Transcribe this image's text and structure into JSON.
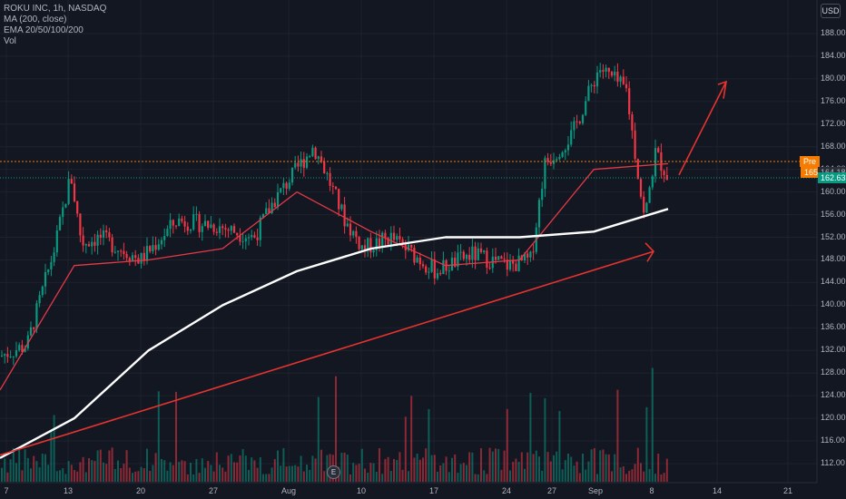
{
  "legend": {
    "symbol_line": "ROKU INC, 1h, NASDAQ",
    "ma_line": "MA (200, close)",
    "ema_line": "EMA 20/50/100/200",
    "vol_line": "Vol"
  },
  "currency": "USD",
  "pre_label": "Pre",
  "pre_price": "165.49",
  "extra_price": "164.18",
  "last_price": "162.63",
  "earnings_icon": "E",
  "colors": {
    "up": "#089981",
    "down": "#f23645",
    "ema20": "#5b9cf6",
    "ema50": "#e63946",
    "ma200": "#ffffff",
    "trend": "#e5332f",
    "pre": "#f57c00"
  },
  "chart_data": {
    "type": "line",
    "title": "ROKU INC, 1h, NASDAQ",
    "ylim": [
      110,
      190
    ],
    "y_ticks": [
      "188.00",
      "184.00",
      "180.00",
      "176.00",
      "172.00",
      "168.00",
      "164.00",
      "160.00",
      "156.00",
      "152.00",
      "148.00",
      "144.00",
      "140.00",
      "136.00",
      "132.00",
      "128.00",
      "124.00",
      "120.00",
      "116.00",
      "112.00"
    ],
    "x_ticks": [
      "7",
      "13",
      "20",
      "27",
      "Aug",
      "10",
      "17",
      "24",
      "27",
      "Sep",
      "8",
      "14",
      "21"
    ],
    "price_path": [
      {
        "x": "7",
        "close": 131.0
      },
      {
        "x": "9",
        "close": 133.0
      },
      {
        "x": "12",
        "close": 150.0
      },
      {
        "x": "13",
        "close": 163.0
      },
      {
        "x": "14",
        "close": 151.0
      },
      {
        "x": "15",
        "close": 152.0
      },
      {
        "x": "20",
        "close": 148.0
      },
      {
        "x": "22",
        "close": 155.0
      },
      {
        "x": "26",
        "close": 154.0
      },
      {
        "x": "28",
        "close": 152.0
      },
      {
        "x": "30",
        "close": 158.0
      },
      {
        "x": "Aug 3",
        "close": 168.0
      },
      {
        "x": "Aug 5",
        "close": 165.0
      },
      {
        "x": "Aug 8",
        "close": 155.0
      },
      {
        "x": "Aug 10",
        "close": 150.0
      },
      {
        "x": "Aug 12",
        "close": 152.0
      },
      {
        "x": "Aug 17",
        "close": 146.0
      },
      {
        "x": "Aug 20",
        "close": 149.0
      },
      {
        "x": "Aug 24",
        "close": 147.0
      },
      {
        "x": "Aug 26",
        "close": 148.0
      },
      {
        "x": "Aug 27",
        "close": 165.0
      },
      {
        "x": "Aug 30",
        "close": 170.0
      },
      {
        "x": "Sep 1",
        "close": 182.0
      },
      {
        "x": "Sep 3",
        "close": 178.0
      },
      {
        "x": "Sep 6",
        "close": 155.0
      },
      {
        "x": "Sep 7",
        "close": 167.0
      },
      {
        "x": "Sep 8",
        "close": 162.63
      }
    ],
    "series": [
      {
        "name": "MA (200, close)",
        "values": [
          113.0,
          120.0,
          132.0,
          140.0,
          146.0,
          150.0,
          152.0,
          152.0,
          153.0,
          157.0
        ]
      },
      {
        "name": "EMA 20/50/100/200",
        "values": [
          125.0,
          147.0,
          148.0,
          150.0,
          160.0,
          153.0,
          147.0,
          148.0,
          164.0,
          165.0
        ]
      }
    ],
    "annotations": [
      "support trendline (red)",
      "upward arrow (red)"
    ],
    "grid": true,
    "volume": true
  }
}
